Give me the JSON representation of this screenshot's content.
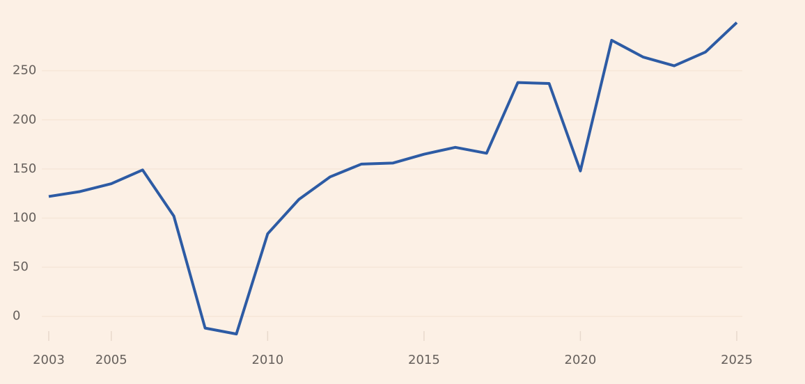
{
  "chart_data": {
    "type": "line",
    "x": [
      2003,
      2004,
      2005,
      2006,
      2007,
      2008,
      2009,
      2010,
      2011,
      2012,
      2013,
      2014,
      2015,
      2016,
      2017,
      2018,
      2019,
      2020,
      2021,
      2022,
      2023,
      2024,
      2025
    ],
    "series": [
      {
        "color": "#2d5ba4",
        "values": [
          122,
          127,
          135,
          149,
          102,
          -12,
          -18,
          84,
          119,
          142,
          155,
          156,
          165,
          172,
          166,
          238,
          237,
          148,
          281,
          264,
          255,
          269,
          299
        ]
      }
    ],
    "xlim": [
      2003,
      2025
    ],
    "xticks": [
      2003,
      2005,
      2010,
      2015,
      2020,
      2025
    ],
    "ylim": [
      -25,
      305
    ],
    "yticks": [
      0,
      50,
      100,
      150,
      200,
      250
    ],
    "grid": true
  }
}
